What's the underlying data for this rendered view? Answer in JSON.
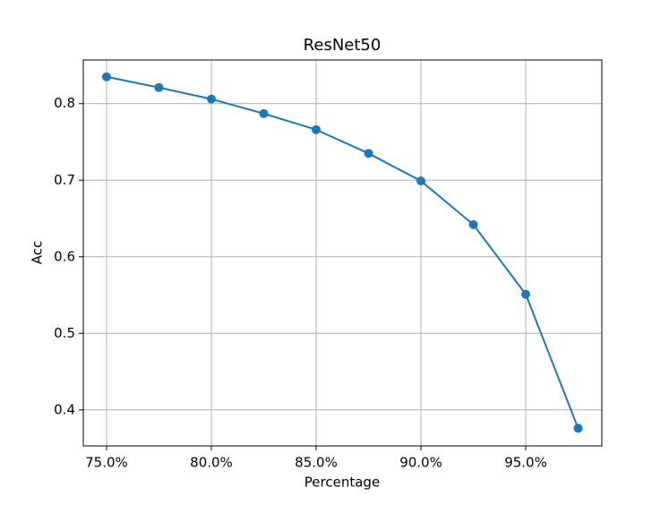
{
  "chart_data": {
    "type": "line",
    "title": "ResNet50",
    "xlabel": "Percentage",
    "ylabel": "Acc",
    "x": [
      75,
      77.5,
      80,
      82.5,
      85,
      87.5,
      90,
      92.5,
      95,
      97.5
    ],
    "series": [
      {
        "color": "#1f77b4",
        "values": [
          0.835,
          0.821,
          0.806,
          0.787,
          0.766,
          0.735,
          0.699,
          0.642,
          0.551,
          0.376
        ]
      }
    ],
    "xlim": [
      73.89,
      98.63
    ],
    "ylim": [
      0.353,
      0.857
    ],
    "xticks": [
      {
        "value": 75,
        "label": "75.0%"
      },
      {
        "value": 80,
        "label": "80.0%"
      },
      {
        "value": 85,
        "label": "85.0%"
      },
      {
        "value": 90,
        "label": "90.0%"
      },
      {
        "value": 95,
        "label": "95.0%"
      }
    ],
    "yticks": [
      0.4,
      0.5,
      0.6,
      0.7,
      0.8
    ],
    "grid": true
  }
}
